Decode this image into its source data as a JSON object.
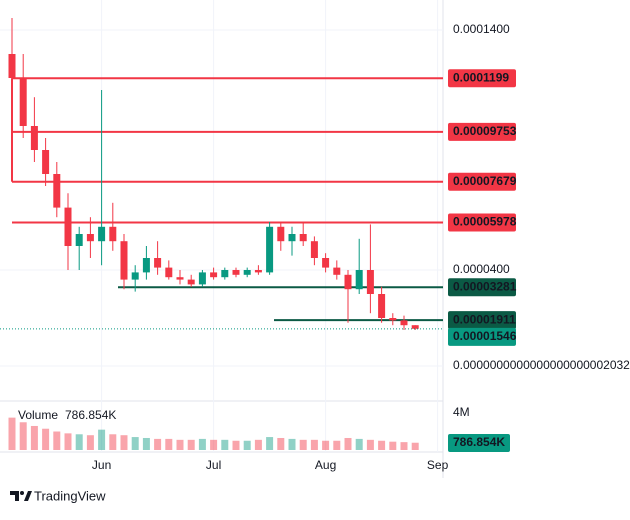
{
  "chart_data": {
    "type": "candlestick",
    "up_color": "#089981",
    "down_color": "#f23645",
    "categories": [
      null,
      null,
      null,
      null,
      null,
      null,
      null,
      null,
      "Jun",
      null,
      null,
      null,
      null,
      null,
      null,
      null,
      null,
      null,
      "Jul",
      null,
      null,
      null,
      null,
      null,
      null,
      null,
      null,
      null,
      "Aug",
      null,
      null,
      null,
      null,
      null,
      null,
      null,
      null,
      null,
      "Sep"
    ],
    "open": [
      0.00013,
      0.00012,
      0.0001,
      9e-05,
      8e-05,
      6.6e-05,
      5e-05,
      5.5e-05,
      5.2e-05,
      5.8e-05,
      5.2e-05,
      3.6e-05,
      3.9e-05,
      4.5e-05,
      4.1e-05,
      3.7e-05,
      3.6e-05,
      3.4e-05,
      3.9e-05,
      3.7e-05,
      4e-05,
      3.8e-05,
      4e-05,
      3.9e-05,
      5.8e-05,
      5.2e-05,
      5.5e-05,
      5.2e-05,
      4.5e-05,
      4.1e-05,
      3.8e-05,
      3.2e-05,
      4e-05,
      3e-05,
      2e-05,
      1.9e-05,
      1.7e-05,
      null,
      null
    ],
    "high": [
      0.000145,
      0.00013,
      0.000112,
      9.5e-05,
      8.5e-05,
      7.2e-05,
      5.8e-05,
      6.2e-05,
      0.000115,
      6.8e-05,
      5.5e-05,
      4.2e-05,
      5e-05,
      5.2e-05,
      4.4e-05,
      4e-05,
      3.8e-05,
      4e-05,
      4.1e-05,
      4.1e-05,
      4.1e-05,
      4.1e-05,
      4.2e-05,
      6e-05,
      6e-05,
      5.8e-05,
      6e-05,
      5.4e-05,
      4.7e-05,
      4.4e-05,
      4e-05,
      5.3e-05,
      5.9e-05,
      3.3e-05,
      2.2e-05,
      2.1e-05,
      1.7e-05,
      null,
      null
    ],
    "low": [
      0.000105,
      9.5e-05,
      8.5e-05,
      7.5e-05,
      6.2e-05,
      4e-05,
      4e-05,
      4.5e-05,
      4.2e-05,
      4.8e-05,
      3.2e-05,
      3.1e-05,
      3.6e-05,
      3.8e-05,
      3.6e-05,
      3.4e-05,
      3.3e-05,
      3.3e-05,
      3.6e-05,
      3.6e-05,
      3.7e-05,
      3.7e-05,
      3.8e-05,
      3.8e-05,
      4.8e-05,
      4.6e-05,
      5e-05,
      4.2e-05,
      3.9e-05,
      3.6e-05,
      1.8e-05,
      3e-05,
      2.2e-05,
      1.8e-05,
      1.7e-05,
      1.5e-05,
      1.5e-05,
      null,
      null
    ],
    "close": [
      0.00012,
      0.0001,
      9e-05,
      8e-05,
      6.6e-05,
      5e-05,
      5.5e-05,
      5.2e-05,
      5.8e-05,
      5.2e-05,
      3.6e-05,
      3.9e-05,
      4.5e-05,
      4.1e-05,
      3.7e-05,
      3.6e-05,
      3.4e-05,
      3.9e-05,
      3.7e-05,
      4e-05,
      3.8e-05,
      4e-05,
      3.9e-05,
      5.8e-05,
      5.2e-05,
      5.5e-05,
      5.2e-05,
      4.5e-05,
      4.1e-05,
      3.8e-05,
      3.2e-05,
      4e-05,
      3e-05,
      2e-05,
      1.9e-05,
      1.7e-05,
      1.55e-05,
      null,
      null
    ],
    "ylim": [
      0,
      0.0001525
    ],
    "yticks": [
      {
        "value": 0.00014,
        "label": "0.0001400"
      },
      {
        "value": 4e-05,
        "label": "0.0000400"
      },
      {
        "value": 2.032e-22,
        "label": "0.0000000000000000000002032"
      }
    ],
    "levels": [
      {
        "value": 0.0001199,
        "color": "#f23645"
      },
      {
        "value": 9.753e-05,
        "color": "#f23645"
      },
      {
        "value": 7.679e-05,
        "color": "#f23645"
      },
      {
        "value": 5.978e-05,
        "color": "#f23645"
      },
      {
        "value": 3.281e-05,
        "color": "#0b5a45"
      },
      {
        "value": 1.911e-05,
        "color": "#0b5a45"
      }
    ],
    "last_price": {
      "value": 1.546e-05,
      "color": "#089981"
    },
    "volume": {
      "title": "Volume",
      "values": [
        3500000,
        3000000,
        2600000,
        2300000,
        2000000,
        1800000,
        1700000,
        1600000,
        2200000,
        1700000,
        1600000,
        1400000,
        1300000,
        1200000,
        1200000,
        1100000,
        1100000,
        1200000,
        1100000,
        1100000,
        1000000,
        1000000,
        1100000,
        1400000,
        1300000,
        1200000,
        1100000,
        1100000,
        1000000,
        1000000,
        1300000,
        1200000,
        1100000,
        1000000,
        900000,
        850000,
        786854,
        null,
        null
      ],
      "value_labels": [
        null,
        null,
        null,
        null,
        null,
        null,
        null,
        null,
        null,
        null,
        null,
        null,
        null,
        null,
        null,
        null,
        null,
        null,
        null,
        null,
        null,
        null,
        null,
        null,
        null,
        null,
        null,
        null,
        null,
        null,
        null,
        null,
        null,
        null,
        null,
        null,
        "786.854K",
        null,
        null
      ],
      "ylim": [
        0,
        5300000
      ],
      "yticks": [
        {
          "value": 4000000,
          "label": "4M"
        }
      ]
    },
    "brand": "TradingView"
  }
}
